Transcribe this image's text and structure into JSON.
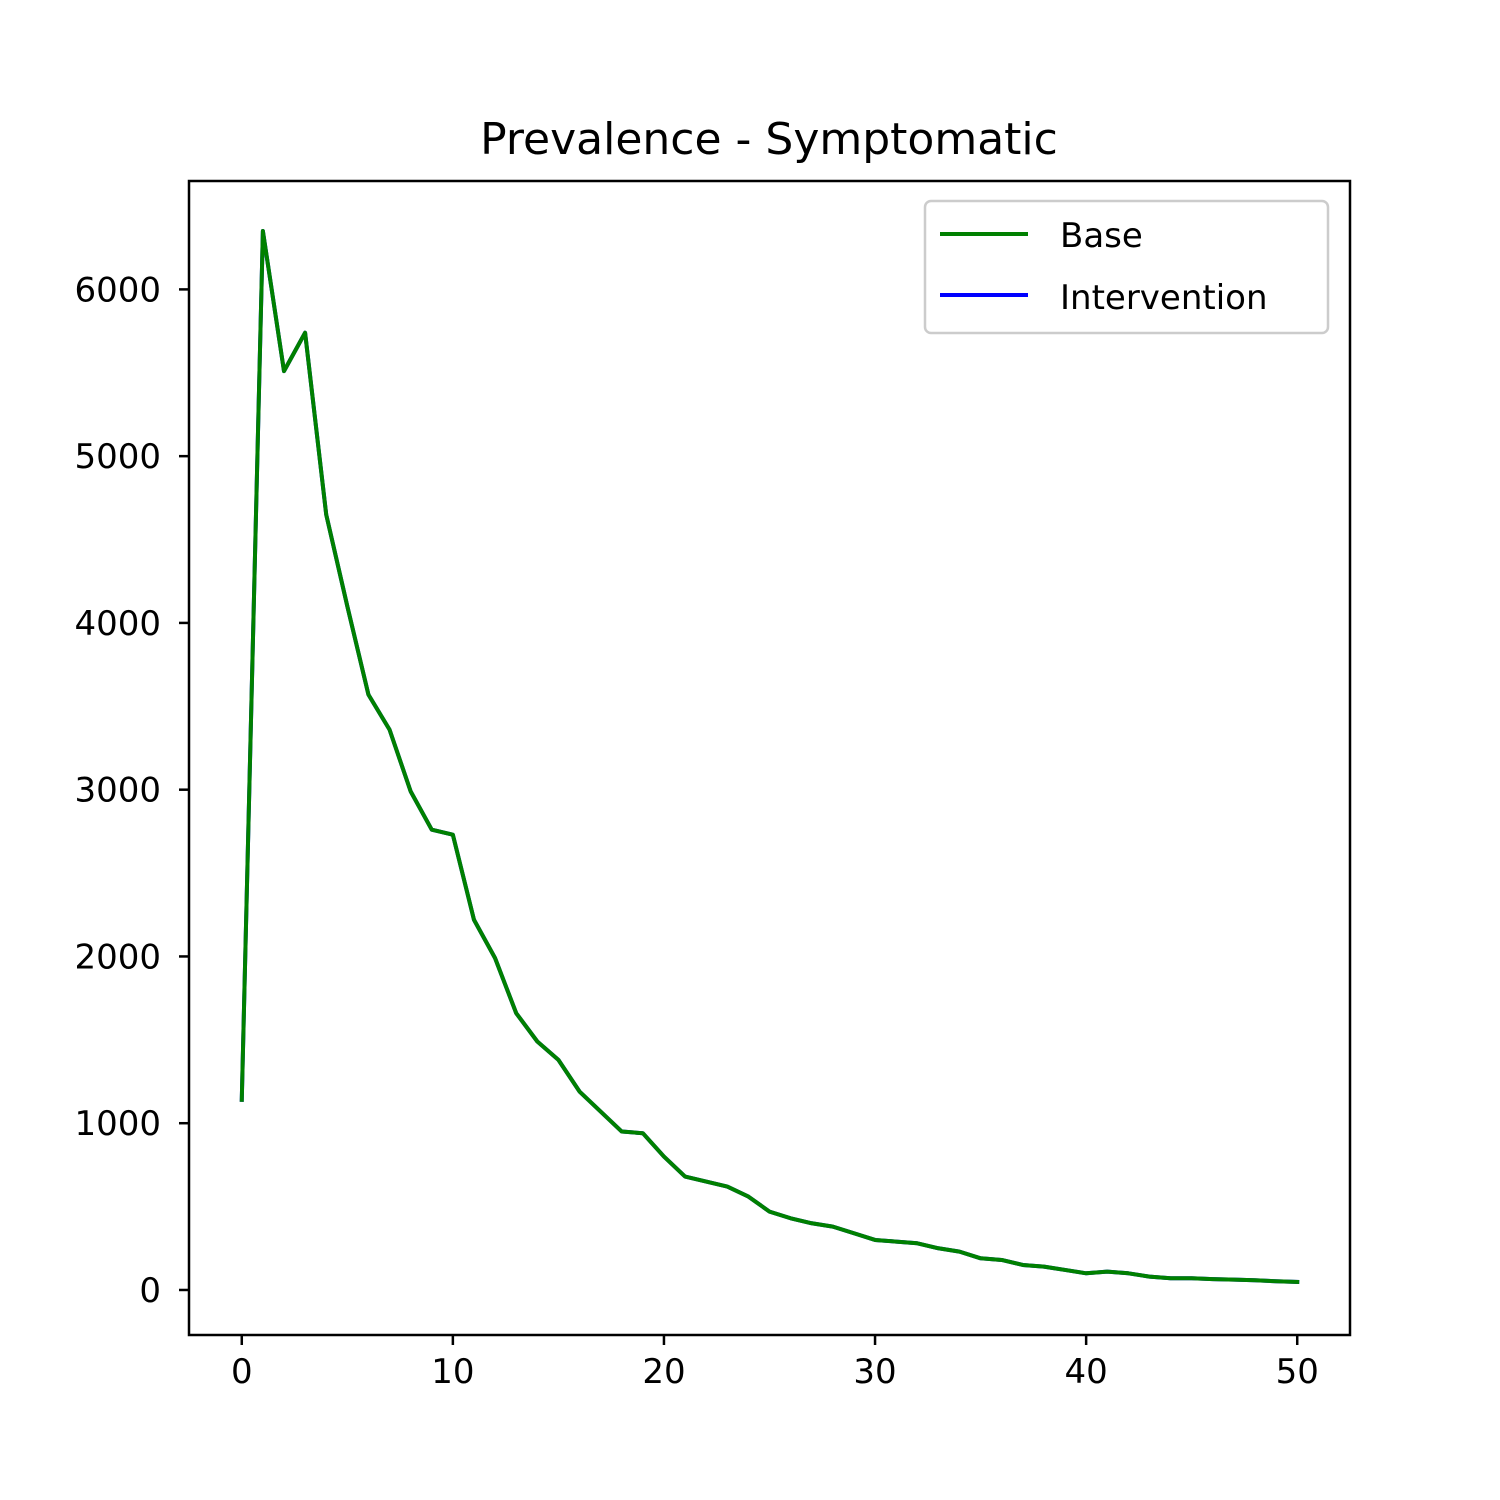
{
  "chart_data": {
    "type": "line",
    "title": "Prevalence - Symptomatic",
    "xlabel": "",
    "ylabel": "",
    "xlim": [
      -2.5,
      52.5
    ],
    "ylim": [
      -270,
      6650
    ],
    "x_ticks": [
      0,
      10,
      20,
      30,
      40,
      50
    ],
    "y_ticks": [
      0,
      1000,
      2000,
      3000,
      4000,
      5000,
      6000
    ],
    "grid": false,
    "legend_position": "top-right",
    "x": [
      0,
      1,
      2,
      3,
      4,
      5,
      6,
      7,
      8,
      9,
      10,
      11,
      12,
      13,
      14,
      15,
      16,
      17,
      18,
      19,
      20,
      21,
      22,
      23,
      24,
      25,
      26,
      27,
      28,
      29,
      30,
      31,
      32,
      33,
      34,
      35,
      36,
      37,
      38,
      39,
      40,
      41,
      42,
      43,
      44,
      45,
      46,
      47,
      48,
      49,
      50
    ],
    "series": [
      {
        "name": "Base",
        "color": "#008000",
        "values": [
          1140,
          6350,
          5510,
          5740,
          4650,
          4100,
          3570,
          3360,
          2990,
          2760,
          2730,
          2220,
          1990,
          1660,
          1490,
          1380,
          1190,
          1070,
          950,
          940,
          800,
          680,
          650,
          620,
          560,
          470,
          430,
          400,
          380,
          340,
          300,
          290,
          280,
          250,
          230,
          190,
          180,
          150,
          140,
          120,
          100,
          110,
          100,
          80,
          70,
          70,
          65,
          62,
          58,
          52,
          48
        ]
      },
      {
        "name": "Intervention",
        "color": "#0000ff",
        "values": [
          1140,
          6350,
          5510,
          5740,
          4650,
          4100,
          3570,
          3360,
          2990,
          2760,
          2730,
          2220,
          1990,
          1660,
          1490,
          1380,
          1190,
          1070,
          950,
          940,
          800,
          680,
          650,
          620,
          560,
          470,
          430,
          400,
          380,
          340,
          300,
          290,
          280,
          250,
          230,
          190,
          180,
          150,
          140,
          120,
          100,
          110,
          100,
          80,
          70,
          70,
          65,
          62,
          58,
          52,
          48
        ]
      }
    ]
  }
}
